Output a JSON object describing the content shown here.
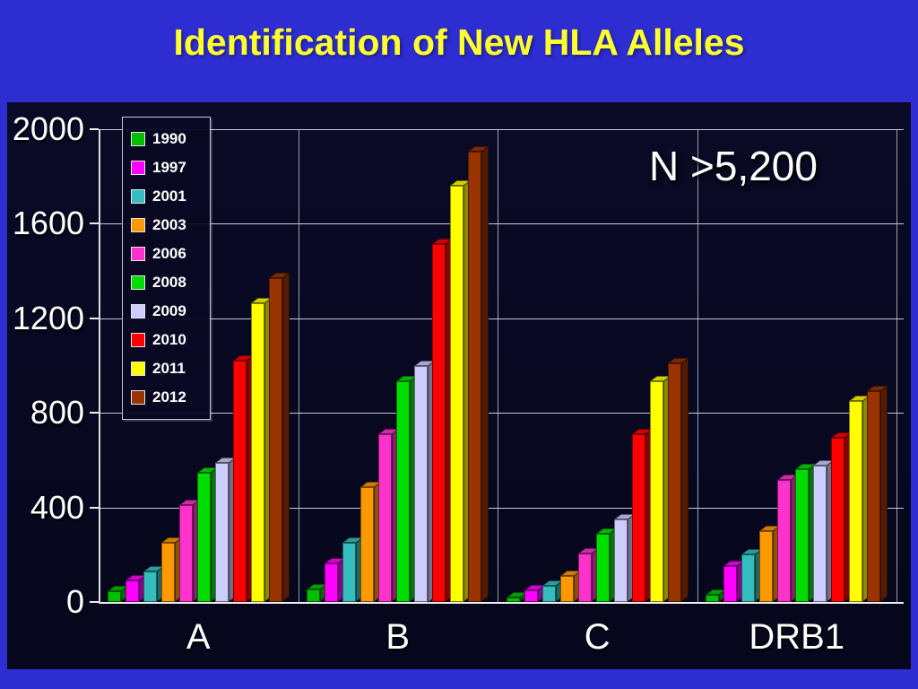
{
  "slide": {
    "title": "Identification of New HLA Alleles",
    "annotation": "N >5,200"
  },
  "colors": {
    "slide_bg": "#2d2dd2",
    "panel_bg": "#07071f",
    "title_text": "#ffff2e",
    "axis_text": "#ffffff",
    "grid": "#e6e6f0"
  },
  "chart_data": {
    "type": "bar",
    "title": "Identification of New HLA Alleles",
    "annotation": "N >5,200",
    "categories": [
      "A",
      "B",
      "C",
      "DRB1"
    ],
    "series": [
      {
        "name": "1990",
        "color": "#00bf00",
        "values": [
          45,
          55,
          20,
          30
        ]
      },
      {
        "name": "1997",
        "color": "#ff00ff",
        "values": [
          90,
          165,
          50,
          150
        ]
      },
      {
        "name": "2001",
        "color": "#35bdbd",
        "values": [
          130,
          250,
          70,
          200
        ]
      },
      {
        "name": "2003",
        "color": "#ff9900",
        "values": [
          250,
          485,
          110,
          300
        ]
      },
      {
        "name": "2006",
        "color": "#ff33cc",
        "values": [
          410,
          710,
          205,
          515
        ]
      },
      {
        "name": "2008",
        "color": "#00dd00",
        "values": [
          545,
          935,
          290,
          560
        ]
      },
      {
        "name": "2009",
        "color": "#ccccff",
        "values": [
          590,
          1000,
          350,
          575
        ]
      },
      {
        "name": "2010",
        "color": "#ff0000",
        "values": [
          1020,
          1515,
          710,
          695
        ]
      },
      {
        "name": "2011",
        "color": "#ffff00",
        "values": [
          1265,
          1760,
          935,
          850
        ]
      },
      {
        "name": "2012",
        "color": "#993300",
        "values": [
          1370,
          1905,
          1010,
          890
        ]
      }
    ],
    "xlabel": "",
    "ylabel": "",
    "ylim": [
      0,
      2000
    ],
    "yticks": [
      0,
      400,
      800,
      1200,
      1600,
      2000
    ],
    "grid": true,
    "legend_position": "top-left"
  }
}
